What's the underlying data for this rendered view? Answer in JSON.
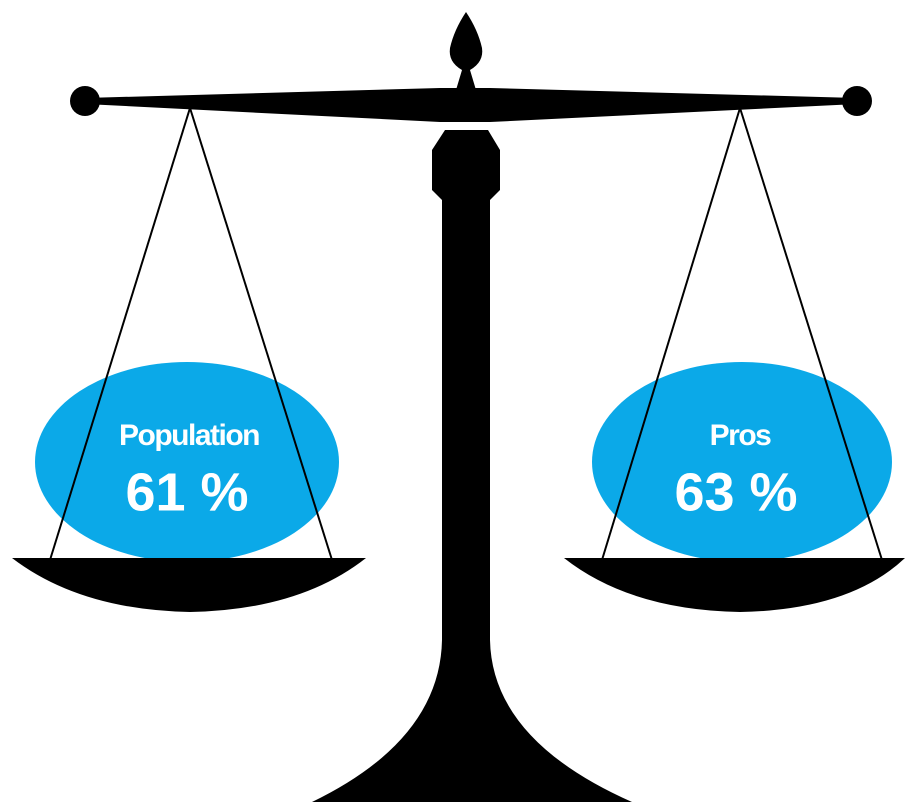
{
  "left": {
    "label": "Population",
    "value": "61 %"
  },
  "right": {
    "label": "Pros",
    "value": "63 %"
  }
}
